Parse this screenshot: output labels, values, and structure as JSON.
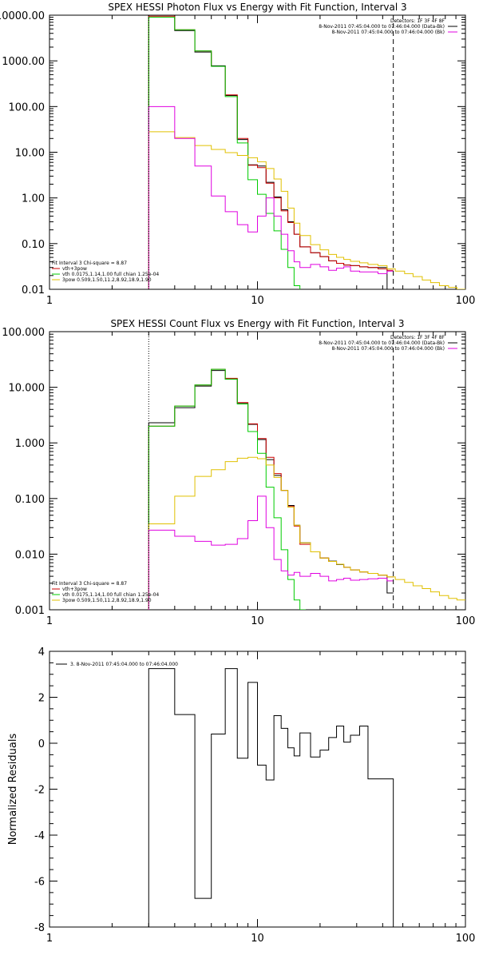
{
  "chart_data": [
    {
      "type": "line",
      "title": "SPEX HESSI Photon Flux vs Energy with Fit Function, Interval 3",
      "xscale": "log",
      "yscale": "log",
      "xlim": [
        1,
        100
      ],
      "ylim": [
        0.01,
        10000
      ],
      "xticks": [
        {
          "v": 1,
          "label": "1"
        },
        {
          "v": 10,
          "label": "10"
        },
        {
          "v": 100,
          "label": "100"
        }
      ],
      "yticks": [
        {
          "v": 0.01,
          "label": "0.01"
        },
        {
          "v": 0.1,
          "label": "0.10"
        },
        {
          "v": 1,
          "label": "1.00"
        },
        {
          "v": 10,
          "label": "10.00"
        },
        {
          "v": 100,
          "label": "100.00"
        },
        {
          "v": 1000,
          "label": "1000.00"
        },
        {
          "v": 10000,
          "label": "10000.00"
        }
      ],
      "vlines": [
        {
          "x": 3.0,
          "style": "dotted"
        },
        {
          "x": 45.0,
          "style": "dashed"
        }
      ],
      "legend_tr": [
        {
          "text": "Detectors: 1F 3F 4F 8F",
          "color": null
        },
        {
          "text": "8-Nov-2011 07:45:04.000 to 07:46:04.000 (Data-Bk)",
          "color": "#000000"
        },
        {
          "text": "8-Nov-2011 07:45:04.000 to 07:46:04.000 (Bk)",
          "color": "#e000e0"
        }
      ],
      "legend_bl": [
        {
          "text": "Fit Interval  3    Chi-square = 8.87",
          "color": null
        },
        {
          "text": "vth+3pow",
          "color": "#cc0000"
        },
        {
          "text": "vth 0.0175,1.14,1.00  full chian 1.25e-04",
          "color": "#00cc00"
        },
        {
          "text": "3pow 0.509,1.50,11.2,8.92,18.9,1.90",
          "color": "#e0c000"
        }
      ],
      "series": [
        {
          "role": "data",
          "color": "#000000",
          "edges": [
            3,
            4,
            5,
            6,
            7,
            8,
            9,
            10,
            11,
            12,
            13,
            14,
            15,
            16,
            18,
            20,
            22,
            24,
            26,
            28,
            31,
            34,
            38,
            42,
            45
          ],
          "values": [
            10000,
            4600,
            1560,
            780,
            175,
            19,
            5.3,
            5,
            2.2,
            1.05,
            0.55,
            0.3,
            0.16,
            0.085,
            0.063,
            0.052,
            0.042,
            0.037,
            0.034,
            0.033,
            0.031,
            0.03,
            0.03,
            0.01
          ]
        },
        {
          "role": "fit-total",
          "color": "#cc0000",
          "edges": [
            3,
            4,
            5,
            6,
            7,
            8,
            9,
            10,
            11,
            12,
            13,
            14,
            15,
            16,
            18,
            20,
            22,
            24,
            26,
            28,
            31,
            34,
            38,
            42,
            45
          ],
          "values": [
            9500,
            4800,
            1650,
            760,
            180,
            20,
            5.2,
            4.6,
            2.1,
            1.0,
            0.52,
            0.29,
            0.16,
            0.085,
            0.063,
            0.052,
            0.042,
            0.037,
            0.034,
            0.033,
            0.031,
            0.03,
            0.028,
            0.026
          ]
        },
        {
          "role": "thermal",
          "color": "#00cc00",
          "edges": [
            3,
            4,
            5,
            6,
            7,
            8,
            9,
            10,
            11,
            12,
            13,
            14,
            15,
            16,
            17
          ],
          "values": [
            9000,
            4800,
            1650,
            760,
            165,
            16,
            2.5,
            1.2,
            0.46,
            0.19,
            0.075,
            0.03,
            0.012,
            0.007
          ]
        },
        {
          "role": "power-law",
          "color": "#e0c000",
          "edges": [
            3,
            4,
            5,
            6,
            7,
            8,
            9,
            10,
            11,
            12,
            13,
            14,
            15,
            16,
            18,
            20,
            22,
            24,
            26,
            28,
            31,
            34,
            38,
            42,
            46,
            51,
            56,
            62,
            68,
            75,
            83,
            91,
            100
          ],
          "values": [
            28,
            21,
            14,
            11.5,
            9.8,
            8.5,
            7.6,
            6.2,
            4.4,
            2.6,
            1.4,
            0.6,
            0.28,
            0.15,
            0.095,
            0.073,
            0.058,
            0.05,
            0.045,
            0.041,
            0.038,
            0.035,
            0.033,
            0.028,
            0.025,
            0.022,
            0.019,
            0.016,
            0.014,
            0.012,
            0.011,
            0.01
          ]
        },
        {
          "role": "background",
          "color": "#e000e0",
          "edges": [
            3,
            4,
            5,
            6,
            7,
            8,
            9,
            10,
            11,
            12,
            13,
            14,
            15,
            16,
            18,
            20,
            22,
            24,
            26,
            28,
            31,
            34,
            38,
            42,
            45
          ],
          "values": [
            100,
            20,
            5,
            1.1,
            0.5,
            0.26,
            0.18,
            0.4,
            1.0,
            0.4,
            0.16,
            0.07,
            0.04,
            0.03,
            0.035,
            0.031,
            0.026,
            0.029,
            0.031,
            0.025,
            0.024,
            0.024,
            0.022,
            0.025
          ]
        }
      ]
    },
    {
      "type": "line",
      "title": "SPEX HESSI Count Flux vs Energy with Fit Function, Interval 3",
      "xscale": "log",
      "yscale": "log",
      "xlim": [
        1,
        100
      ],
      "ylim": [
        0.001,
        100
      ],
      "xticks": [
        {
          "v": 1,
          "label": "1"
        },
        {
          "v": 10,
          "label": "10"
        },
        {
          "v": 100,
          "label": "100"
        }
      ],
      "yticks": [
        {
          "v": 0.001,
          "label": "0.001"
        },
        {
          "v": 0.01,
          "label": "0.010"
        },
        {
          "v": 0.1,
          "label": "0.100"
        },
        {
          "v": 1,
          "label": "1.000"
        },
        {
          "v": 10,
          "label": "10.000"
        },
        {
          "v": 100,
          "label": "100.000"
        }
      ],
      "vlines": [
        {
          "x": 3.0,
          "style": "dotted"
        },
        {
          "x": 45.0,
          "style": "dashed"
        }
      ],
      "legend_tr": [
        {
          "text": "Detectors: 1F 3F 4F 8F",
          "color": null
        },
        {
          "text": "8-Nov-2011 07:45:04.000 to 07:46:04.000 (Data-Bk)",
          "color": "#000000"
        },
        {
          "text": "8-Nov-2011 07:45:04.000 to 07:46:04.000 (Bk)",
          "color": "#e000e0"
        }
      ],
      "legend_bl": [
        {
          "text": "Fit Interval  3    Chi-square = 8.87",
          "color": null
        },
        {
          "text": "vth+3pow",
          "color": "#cc0000"
        },
        {
          "text": "vth 0.0175,1.14,1.00  full chian 1.25e-04",
          "color": "#00cc00"
        },
        {
          "text": "3pow 0.509,1.50,11.2,8.92,18.9,1.90",
          "color": "#e0c000"
        }
      ],
      "series": [
        {
          "role": "data",
          "color": "#000000",
          "edges": [
            3,
            4,
            5,
            6,
            7,
            8,
            9,
            10,
            11,
            12,
            13,
            14,
            15,
            16,
            18,
            20,
            22,
            24,
            26,
            28,
            31,
            34,
            38,
            42,
            45
          ],
          "values": [
            2.3,
            4.3,
            10.5,
            20,
            14,
            5.1,
            2.15,
            1.15,
            0.5,
            0.26,
            0.14,
            0.075,
            0.033,
            0.016,
            0.011,
            0.0085,
            0.0075,
            0.0065,
            0.0058,
            0.0052,
            0.0048,
            0.0045,
            0.0042,
            0.002
          ]
        },
        {
          "role": "fit-total",
          "color": "#cc0000",
          "edges": [
            3,
            4,
            5,
            6,
            7,
            8,
            9,
            10,
            11,
            12,
            13,
            14,
            15,
            16,
            18,
            20,
            22,
            24,
            26,
            28,
            31,
            34,
            38,
            42,
            45
          ],
          "values": [
            2.0,
            4.6,
            11,
            21,
            14.5,
            5.3,
            2.2,
            1.2,
            0.55,
            0.28,
            0.14,
            0.072,
            0.032,
            0.015,
            0.011,
            0.0085,
            0.0074,
            0.0066,
            0.0058,
            0.0052,
            0.0048,
            0.0045,
            0.0042,
            0.0039
          ]
        },
        {
          "role": "thermal",
          "color": "#00cc00",
          "edges": [
            3,
            4,
            5,
            6,
            7,
            8,
            9,
            10,
            11,
            12,
            13,
            14,
            15,
            16,
            17
          ],
          "values": [
            2.0,
            4.6,
            11,
            21,
            14,
            5,
            1.6,
            0.65,
            0.16,
            0.045,
            0.012,
            0.0035,
            0.0015,
            0.001
          ]
        },
        {
          "role": "power-law",
          "color": "#e0c000",
          "edges": [
            3,
            4,
            5,
            6,
            7,
            8,
            9,
            10,
            11,
            12,
            13,
            14,
            15,
            16,
            18,
            20,
            22,
            24,
            26,
            28,
            31,
            34,
            38,
            42,
            46,
            51,
            56,
            62,
            68,
            75,
            83,
            91,
            100
          ],
          "values": [
            0.035,
            0.11,
            0.25,
            0.33,
            0.46,
            0.53,
            0.55,
            0.52,
            0.4,
            0.24,
            0.14,
            0.07,
            0.033,
            0.016,
            0.011,
            0.0085,
            0.0074,
            0.0066,
            0.0058,
            0.0052,
            0.0048,
            0.0045,
            0.0042,
            0.0039,
            0.0035,
            0.0031,
            0.0027,
            0.0024,
            0.0021,
            0.0018,
            0.0016,
            0.0015
          ]
        },
        {
          "role": "background",
          "color": "#e000e0",
          "edges": [
            3,
            4,
            5,
            6,
            7,
            8,
            9,
            10,
            11,
            12,
            13,
            14,
            15,
            16,
            18,
            20,
            22,
            24,
            26,
            28,
            31,
            34,
            38,
            42,
            45
          ],
          "values": [
            0.027,
            0.021,
            0.017,
            0.0145,
            0.015,
            0.019,
            0.04,
            0.11,
            0.03,
            0.008,
            0.005,
            0.0042,
            0.0047,
            0.004,
            0.0045,
            0.004,
            0.0033,
            0.0035,
            0.0037,
            0.0034,
            0.0035,
            0.0036,
            0.0037,
            0.0033
          ]
        }
      ]
    },
    {
      "type": "line",
      "ylabel": "Normalized Residuals",
      "xscale": "log",
      "xlim": [
        1,
        100
      ],
      "ylim": [
        -8,
        4
      ],
      "xticks": [
        {
          "v": 1,
          "label": "1"
        },
        {
          "v": 10,
          "label": "10"
        },
        {
          "v": 100,
          "label": "100"
        }
      ],
      "yticks": [
        {
          "v": -8,
          "label": "-8"
        },
        {
          "v": -6,
          "label": "-6"
        },
        {
          "v": -4,
          "label": "-4"
        },
        {
          "v": -2,
          "label": "-2"
        },
        {
          "v": 0,
          "label": "0"
        },
        {
          "v": 2,
          "label": "2"
        },
        {
          "v": 4,
          "label": "4"
        }
      ],
      "legend_tl": [
        {
          "text": "3.  8-Nov-2011 07:45:04.000 to 07:46:04.000",
          "color": "#000000"
        }
      ],
      "series": [
        {
          "role": "residuals",
          "color": "#000000",
          "edges": [
            3,
            4,
            5,
            6,
            7,
            8,
            9,
            10,
            11,
            12,
            13,
            14,
            15,
            16,
            18,
            20,
            22,
            24,
            26,
            28,
            31,
            34,
            38,
            42,
            45
          ],
          "values": [
            3.25,
            1.25,
            -6.75,
            0.4,
            3.25,
            -0.65,
            2.65,
            -0.95,
            -1.6,
            1.2,
            0.65,
            -0.2,
            -0.55,
            0.45,
            -0.6,
            -0.3,
            0.25,
            0.75,
            0.05,
            0.35,
            0.75,
            -1.55,
            -1.55,
            -1.55
          ]
        }
      ]
    }
  ]
}
